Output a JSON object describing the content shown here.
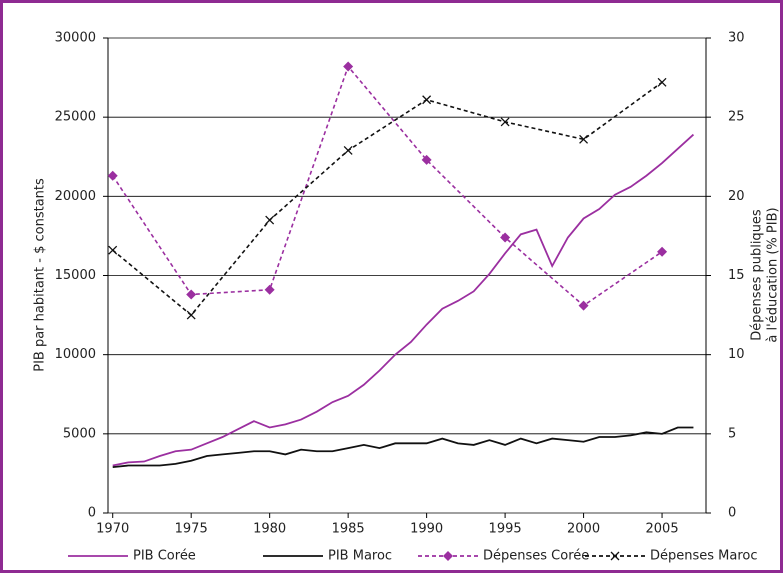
{
  "chart_data": {
    "type": "line",
    "ylabel": "PIB par habitant - $ constants",
    "y2label": [
      "Dépenses publiques",
      "à l'éducation (% PIB)"
    ],
    "xlim": [
      1969.7,
      2007.8
    ],
    "xticks": [
      1970,
      1975,
      1980,
      1985,
      1990,
      1995,
      2000,
      2005
    ],
    "ylim": [
      0,
      30000
    ],
    "yticks": [
      0,
      5000,
      10000,
      15000,
      20000,
      25000,
      30000
    ],
    "y2lim": [
      0,
      30
    ],
    "y2ticks": [
      0,
      5,
      10,
      15,
      20,
      25,
      30
    ],
    "grid": true,
    "legend": "bottom",
    "series": [
      {
        "name": "PIB Corée",
        "color": "#9b2fa0",
        "dash": false,
        "marker": "none",
        "x": [
          1970,
          1971,
          1972,
          1973,
          1974,
          1975,
          1976,
          1977,
          1978,
          1979,
          1980,
          1981,
          1982,
          1983,
          1984,
          1985,
          1986,
          1987,
          1988,
          1989,
          1990,
          1991,
          1992,
          1993,
          1994,
          1995,
          1996,
          1997,
          1998,
          1999,
          2000,
          2001,
          2002,
          2003,
          2004,
          2005,
          2006,
          2007
        ],
        "values": [
          3000,
          3200,
          3250,
          3600,
          3900,
          4000,
          4400,
          4800,
          5300,
          5800,
          5400,
          5600,
          5900,
          6400,
          7000,
          7400,
          8100,
          9000,
          10000,
          10800,
          11900,
          12900,
          13400,
          14000,
          15100,
          16400,
          17600,
          17900,
          15600,
          17400,
          18600,
          19200,
          20100,
          20600,
          21300,
          22100,
          23000,
          23900
        ]
      },
      {
        "name": "PIB Maroc",
        "color": "#111111",
        "dash": false,
        "marker": "none",
        "x": [
          1970,
          1971,
          1972,
          1973,
          1974,
          1975,
          1976,
          1977,
          1978,
          1979,
          1980,
          1981,
          1982,
          1983,
          1984,
          1985,
          1986,
          1987,
          1988,
          1989,
          1990,
          1991,
          1992,
          1993,
          1994,
          1995,
          1996,
          1997,
          1998,
          1999,
          2000,
          2001,
          2002,
          2003,
          2004,
          2005,
          2006,
          2007
        ],
        "values": [
          2900,
          3000,
          3000,
          3000,
          3100,
          3300,
          3600,
          3700,
          3800,
          3900,
          3900,
          3700,
          4000,
          3900,
          3900,
          4100,
          4300,
          4100,
          4400,
          4400,
          4400,
          4700,
          4400,
          4300,
          4600,
          4300,
          4700,
          4400,
          4700,
          4600,
          4500,
          4800,
          4800,
          4900,
          5100,
          5000,
          5400,
          5400
        ]
      },
      {
        "name": "Dépenses Corée",
        "color": "#9b2fa0",
        "dash": true,
        "marker": "diamond",
        "axis": "y2",
        "x": [
          1970,
          1975,
          1980,
          1985,
          1990,
          1995,
          2000,
          2005
        ],
        "values": [
          21.3,
          13.8,
          14.1,
          28.2,
          22.3,
          17.4,
          13.1,
          16.5
        ]
      },
      {
        "name": "Dépenses Maroc",
        "color": "#111111",
        "dash": true,
        "marker": "cross",
        "axis": "y2",
        "x": [
          1970,
          1975,
          1980,
          1985,
          1990,
          1995,
          2000,
          2005
        ],
        "values": [
          16.6,
          12.5,
          18.5,
          22.9,
          26.1,
          24.7,
          23.6,
          27.2
        ]
      }
    ]
  }
}
